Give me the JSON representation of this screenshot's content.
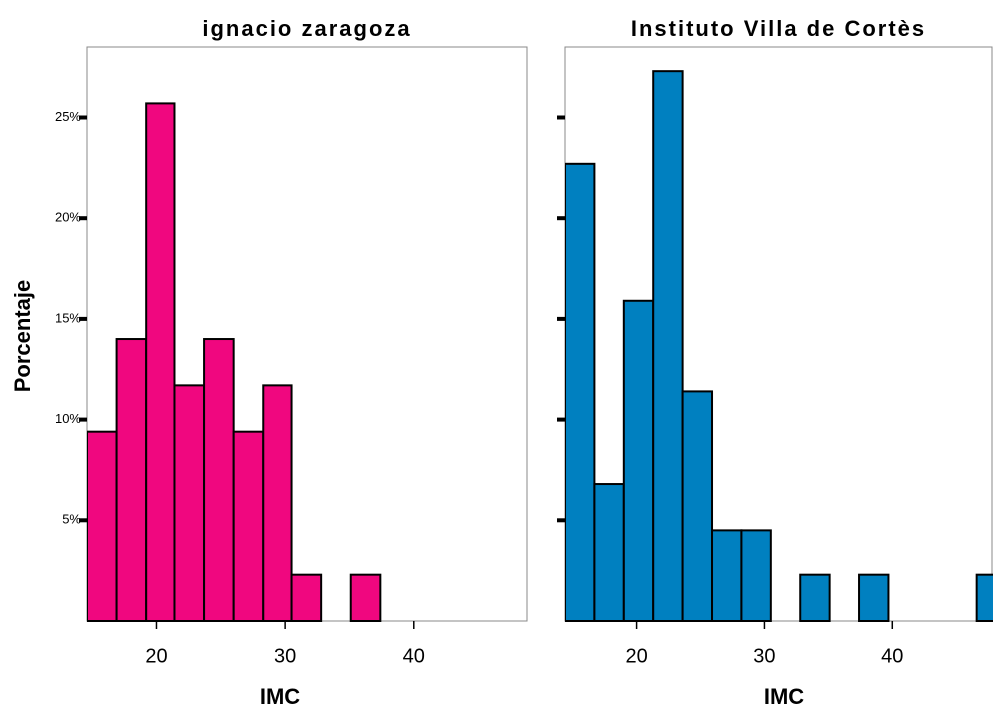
{
  "chart_data": [
    {
      "type": "histogram",
      "title": "ignacio zaragoza",
      "xlabel": "IMC",
      "ylabel": "Porcentaje",
      "color": "#f0077f",
      "bins": [
        14.6,
        16.9,
        19.2,
        21.4,
        23.7,
        26.0,
        28.3,
        30.5,
        32.8,
        35.1,
        37.4
      ],
      "values": [
        9.4,
        14.0,
        25.7,
        11.7,
        14.0,
        9.4,
        11.7,
        2.3,
        0,
        2.3
      ],
      "xlim": [
        14.6,
        48.8
      ],
      "ylim": [
        0,
        28.5
      ],
      "xticks": [
        20,
        30,
        40
      ],
      "yticks": [
        {
          "value": 5,
          "label": "5%"
        },
        {
          "value": 10,
          "label": "10%"
        },
        {
          "value": 15,
          "label": "15%"
        },
        {
          "value": 20,
          "label": "20%"
        },
        {
          "value": 25,
          "label": "25%"
        }
      ],
      "show_ytick_labels": true
    },
    {
      "type": "histogram",
      "title": "Instituto Villa de Cortès",
      "xlabel": "IMC",
      "color": "#0080c0",
      "bins": [
        14.4,
        16.7,
        19.0,
        21.3,
        23.6,
        25.9,
        28.2,
        30.5,
        32.8,
        35.1,
        37.4,
        39.7,
        42.0,
        44.3,
        46.6,
        48.9
      ],
      "values": [
        22.7,
        6.8,
        15.9,
        27.3,
        11.4,
        4.5,
        4.5,
        0,
        2.3,
        0,
        2.3,
        0,
        0,
        0,
        2.3
      ],
      "xlim": [
        14.4,
        47.8
      ],
      "ylim": [
        0,
        28.5
      ],
      "xticks": [
        20,
        30,
        40
      ],
      "yticks": [
        5,
        10,
        15,
        20,
        25
      ],
      "show_ytick_labels": false
    }
  ]
}
